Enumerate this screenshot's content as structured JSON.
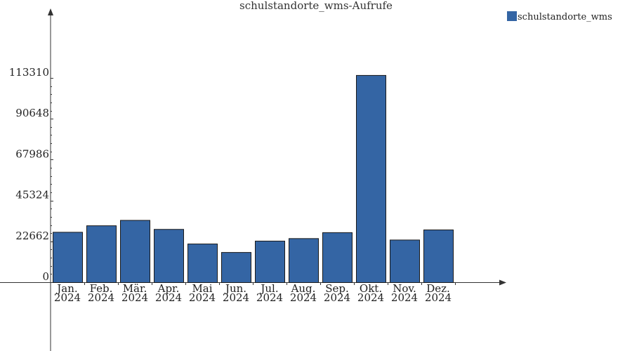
{
  "chart_data": {
    "type": "bar",
    "title": "schulstandorte_wms-Aufrufe",
    "xlabel": "",
    "ylabel": "",
    "categories": [
      [
        "Jan.",
        "2024"
      ],
      [
        "Feb.",
        "2024"
      ],
      [
        "Mär.",
        "2024"
      ],
      [
        "Apr.",
        "2024"
      ],
      [
        "Mai",
        "2024"
      ],
      [
        "Jun.",
        "2024"
      ],
      [
        "Jul.",
        "2024"
      ],
      [
        "Aug.",
        "2024"
      ],
      [
        "Sep.",
        "2024"
      ],
      [
        "Okt.",
        "2024"
      ],
      [
        "Nov.",
        "2024"
      ],
      [
        "Dez.",
        "2024"
      ]
    ],
    "series": [
      {
        "name": "schulstandorte_wms",
        "color": "#3465a4",
        "values": [
          27900,
          31500,
          34500,
          29500,
          21400,
          16700,
          23000,
          24400,
          27700,
          114900,
          23600,
          29200
        ]
      }
    ],
    "yticks": [
      0,
      22662,
      45324,
      67986,
      90648,
      113310
    ],
    "yticklabels": [
      "0",
      "22662",
      "45324",
      "67986",
      "90648",
      "113310"
    ],
    "ylim": [
      0,
      113310
    ],
    "grid": false,
    "legend_position": "top-right"
  }
}
